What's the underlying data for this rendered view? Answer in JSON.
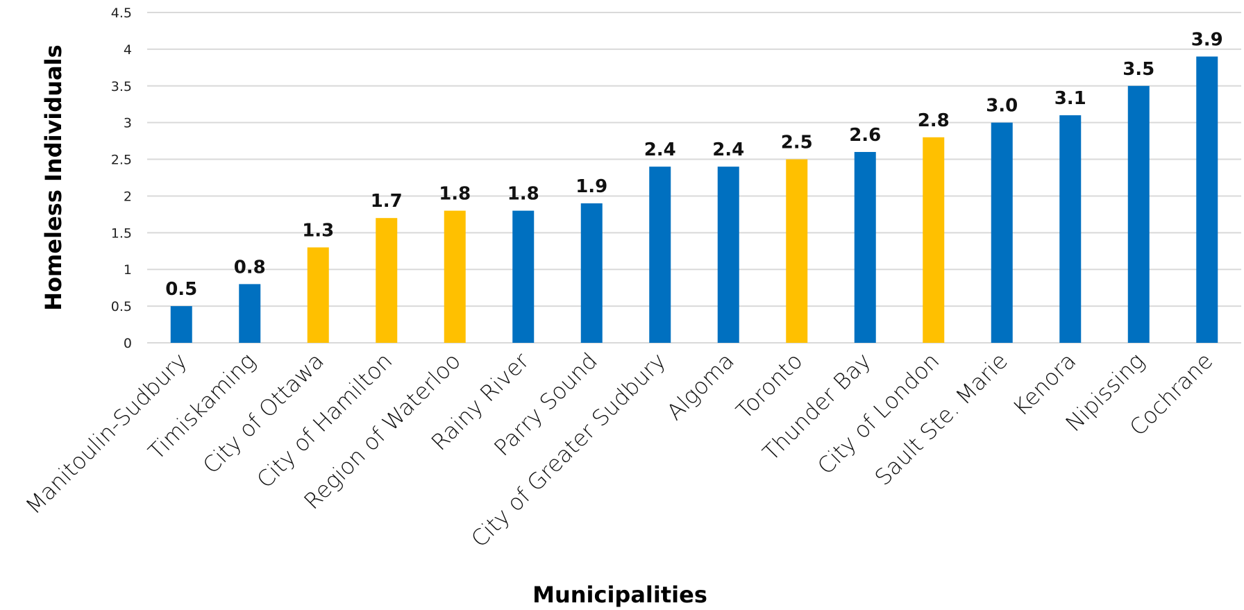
{
  "chart_data": {
    "type": "bar",
    "title": "",
    "xlabel": "Municipalities",
    "ylabel": "Homeless Individuals",
    "ylim": [
      0,
      4.5
    ],
    "yticks": [
      "0",
      "0.5",
      "1",
      "1.5",
      "2",
      "2.5",
      "3",
      "3.5",
      "4",
      "4.5"
    ],
    "grid": true,
    "legend": "none",
    "categories": [
      "Manitoulin-Sudbury",
      "Timiskaming",
      "City of Ottawa",
      "City of Hamilton",
      "Region of Waterloo",
      "Rainy River",
      "Parry Sound",
      "City of Greater Sudbury",
      "Algoma",
      "Toronto",
      "Thunder Bay",
      "City of London",
      "Sault Ste. Marie",
      "Kenora",
      "Nipissing",
      "Cochrane"
    ],
    "values": [
      0.5,
      0.8,
      1.3,
      1.7,
      1.8,
      1.8,
      1.9,
      2.4,
      2.4,
      2.5,
      2.6,
      2.8,
      3.0,
      3.1,
      3.5,
      3.9
    ],
    "labels": [
      "0.5",
      "0.8",
      "1.3",
      "1.7",
      "1.8",
      "1.8",
      "1.9",
      "2.4",
      "2.4",
      "2.5",
      "2.6",
      "2.8",
      "3.0",
      "3.1",
      "3.5",
      "3.9"
    ],
    "bar_colors": [
      "#0070C0",
      "#0070C0",
      "#FFC000",
      "#FFC000",
      "#FFC000",
      "#0070C0",
      "#0070C0",
      "#0070C0",
      "#0070C0",
      "#FFC000",
      "#0070C0",
      "#FFC000",
      "#0070C0",
      "#0070C0",
      "#0070C0",
      "#0070C0"
    ]
  }
}
